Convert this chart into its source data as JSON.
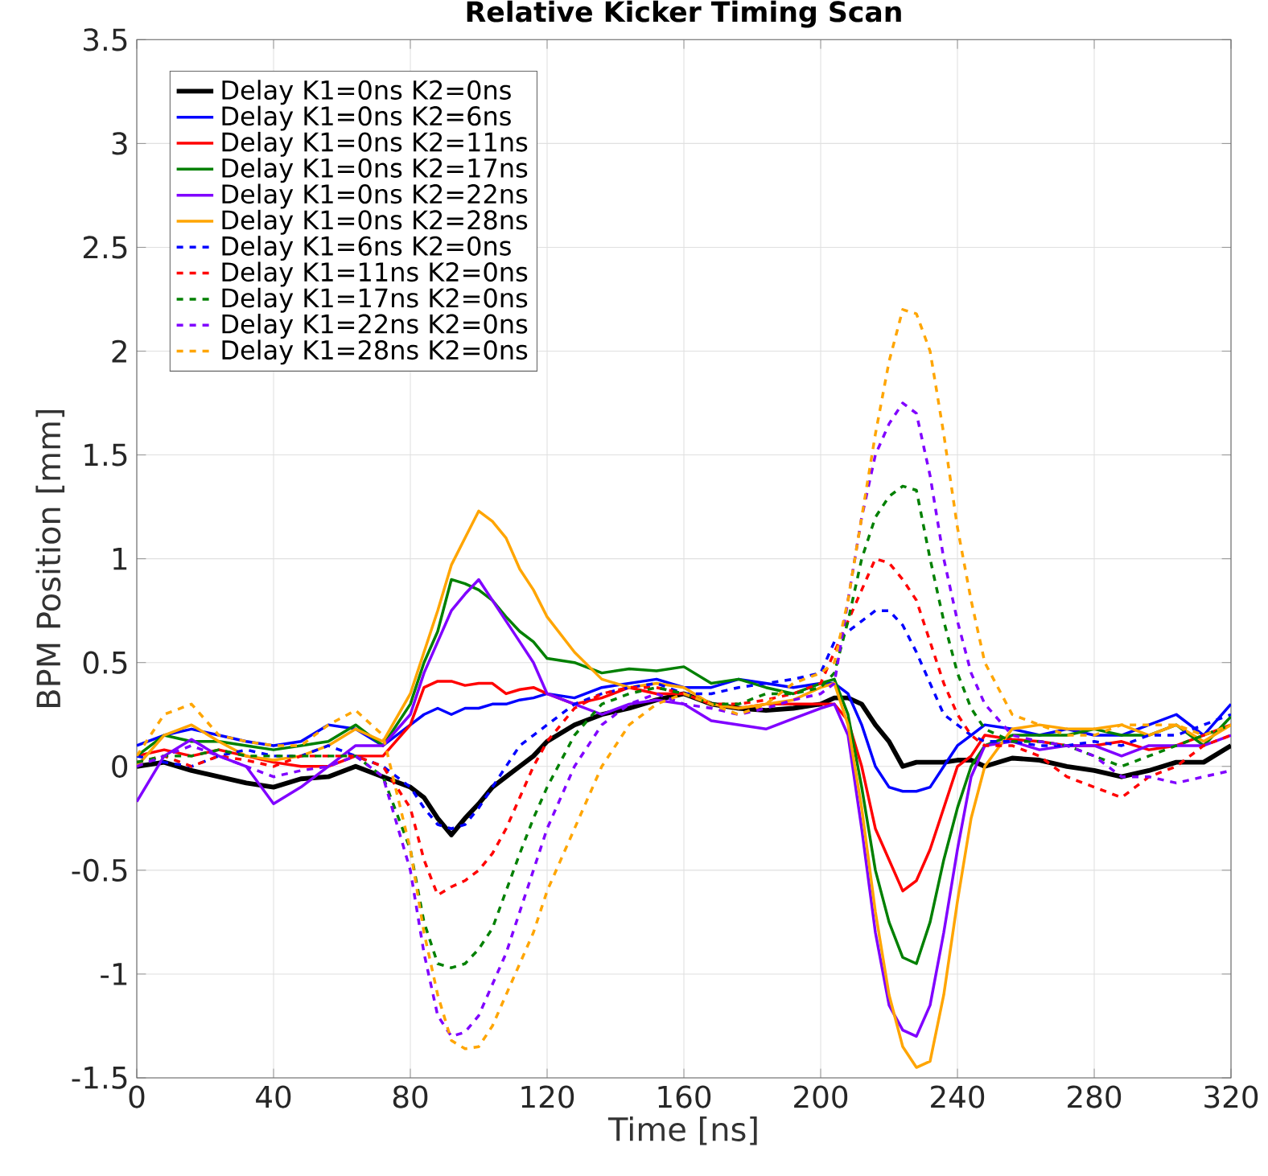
{
  "chart_data": {
    "type": "line",
    "title": "Relative Kicker Timing Scan",
    "xlabel": "Time [ns]",
    "ylabel": "BPM Position [mm]",
    "x": [
      0,
      8,
      16,
      24,
      32,
      40,
      48,
      56,
      64,
      72,
      80,
      84,
      88,
      92,
      96,
      100,
      104,
      108,
      112,
      116,
      120,
      128,
      136,
      144,
      152,
      160,
      168,
      176,
      184,
      192,
      200,
      204,
      208,
      212,
      216,
      220,
      224,
      228,
      232,
      236,
      240,
      244,
      248,
      256,
      264,
      272,
      280,
      288,
      296,
      304,
      312,
      320
    ],
    "xlim": [
      0,
      320
    ],
    "ylim": [
      -1.5,
      3.5
    ],
    "xticks": [
      0,
      40,
      80,
      120,
      160,
      200,
      240,
      280,
      320
    ],
    "yticks": [
      -1.5,
      -1,
      -0.5,
      0,
      0.5,
      1,
      1.5,
      2,
      2.5,
      3,
      3.5
    ],
    "grid": true,
    "legend": "top left",
    "series": [
      {
        "name": "Delay K1=0ns K2=0ns",
        "color": "#000000",
        "line_style": "solid",
        "values": [
          0,
          0.02,
          -0.02,
          -0.05,
          -0.08,
          -0.1,
          -0.06,
          -0.05,
          0,
          -0.05,
          -0.1,
          -0.15,
          -0.25,
          -0.33,
          -0.25,
          -0.18,
          -0.1,
          -0.05,
          0,
          0.05,
          0.12,
          0.2,
          0.25,
          0.28,
          0.32,
          0.35,
          0.3,
          0.28,
          0.27,
          0.28,
          0.3,
          0.33,
          0.33,
          0.3,
          0.2,
          0.12,
          0,
          0.02,
          0.02,
          0.02,
          0.03,
          0.03,
          0,
          0.04,
          0.03,
          0,
          -0.02,
          -0.05,
          -0.02,
          0.02,
          0.02,
          0.1
        ]
      },
      {
        "name": "Delay K1=0ns K2=6ns",
        "color": "#0000ff",
        "line_style": "solid",
        "values": [
          0.1,
          0.15,
          0.18,
          0.15,
          0.12,
          0.1,
          0.12,
          0.2,
          0.18,
          0.1,
          0.2,
          0.25,
          0.28,
          0.25,
          0.28,
          0.28,
          0.3,
          0.3,
          0.32,
          0.33,
          0.35,
          0.33,
          0.38,
          0.4,
          0.42,
          0.38,
          0.38,
          0.42,
          0.4,
          0.38,
          0.4,
          0.4,
          0.35,
          0.2,
          0,
          -0.1,
          -0.12,
          -0.12,
          -0.1,
          0,
          0.1,
          0.15,
          0.2,
          0.18,
          0.15,
          0.18,
          0.15,
          0.15,
          0.2,
          0.25,
          0.15,
          0.3
        ]
      },
      {
        "name": "Delay K1=0ns K2=11ns",
        "color": "#ff0000",
        "line_style": "solid",
        "values": [
          0.05,
          0.08,
          0.05,
          0.08,
          0.05,
          0.02,
          0,
          0,
          0.05,
          0.05,
          0.2,
          0.38,
          0.41,
          0.41,
          0.39,
          0.4,
          0.4,
          0.35,
          0.37,
          0.38,
          0.35,
          0.3,
          0.33,
          0.38,
          0.35,
          0.35,
          0.3,
          0.28,
          0.3,
          0.3,
          0.3,
          0.3,
          0.22,
          0,
          -0.3,
          -0.45,
          -0.6,
          -0.55,
          -0.4,
          -0.2,
          0,
          0.05,
          0.15,
          0.13,
          0.12,
          0.1,
          0.1,
          0.12,
          0.08,
          0.1,
          0.15,
          0.2
        ]
      },
      {
        "name": "Delay K1=0ns K2=17ns",
        "color": "#008000",
        "line_style": "solid",
        "values": [
          0.05,
          0.15,
          0.12,
          0.12,
          0.1,
          0.08,
          0.1,
          0.12,
          0.2,
          0.1,
          0.3,
          0.5,
          0.65,
          0.9,
          0.88,
          0.85,
          0.8,
          0.72,
          0.65,
          0.6,
          0.52,
          0.5,
          0.45,
          0.47,
          0.46,
          0.48,
          0.4,
          0.42,
          0.38,
          0.35,
          0.4,
          0.42,
          0.25,
          -0.1,
          -0.5,
          -0.75,
          -0.92,
          -0.95,
          -0.75,
          -0.45,
          -0.2,
          0,
          0.1,
          0.15,
          0.15,
          0.15,
          0.18,
          0.15,
          0.15,
          0.2,
          0.1,
          0.24
        ]
      },
      {
        "name": "Delay K1=0ns K2=22ns",
        "color": "#8000ff",
        "line_style": "solid",
        "values": [
          -0.17,
          0.05,
          0.13,
          0.05,
          0,
          -0.18,
          -0.1,
          0,
          0.1,
          0.1,
          0.25,
          0.45,
          0.6,
          0.75,
          0.83,
          0.9,
          0.8,
          0.7,
          0.6,
          0.5,
          0.35,
          0.3,
          0.25,
          0.3,
          0.32,
          0.3,
          0.22,
          0.2,
          0.18,
          0.23,
          0.28,
          0.3,
          0.15,
          -0.3,
          -0.8,
          -1.15,
          -1.27,
          -1.3,
          -1.15,
          -0.8,
          -0.4,
          -0.05,
          0.1,
          0.12,
          0.08,
          0.1,
          0.1,
          0.05,
          0.1,
          0.1,
          0.1,
          0.15
        ]
      },
      {
        "name": "Delay K1=0ns K2=28ns",
        "color": "#ffa500",
        "line_style": "solid",
        "values": [
          0,
          0.15,
          0.2,
          0.12,
          0.05,
          0.03,
          0.05,
          0.1,
          0.18,
          0.12,
          0.35,
          0.55,
          0.75,
          0.97,
          1.1,
          1.23,
          1.18,
          1.1,
          0.95,
          0.85,
          0.72,
          0.55,
          0.42,
          0.38,
          0.4,
          0.38,
          0.3,
          0.28,
          0.3,
          0.32,
          0.38,
          0.4,
          0.2,
          -0.2,
          -0.7,
          -1.1,
          -1.35,
          -1.45,
          -1.42,
          -1.1,
          -0.65,
          -0.25,
          0,
          0.18,
          0.2,
          0.18,
          0.18,
          0.2,
          0.15,
          0.2,
          0.12,
          0.2
        ]
      },
      {
        "name": "Delay K1=6ns K2=0ns",
        "color": "#0000ff",
        "line_style": "dashed",
        "values": [
          0.05,
          0.02,
          0,
          0.05,
          0.08,
          0.05,
          0.05,
          0.1,
          0.05,
          0,
          -0.1,
          -0.2,
          -0.28,
          -0.3,
          -0.28,
          -0.2,
          -0.1,
          0,
          0.1,
          0.15,
          0.2,
          0.3,
          0.35,
          0.38,
          0.4,
          0.35,
          0.35,
          0.38,
          0.4,
          0.42,
          0.45,
          0.6,
          0.65,
          0.7,
          0.75,
          0.75,
          0.68,
          0.55,
          0.4,
          0.25,
          0.2,
          0.15,
          0.12,
          0.12,
          0.1,
          0.1,
          0.12,
          0.1,
          0.15,
          0.15,
          0.2,
          0.25
        ]
      },
      {
        "name": "Delay K1=11ns K2=0ns",
        "color": "#ff0000",
        "line_style": "dashed",
        "values": [
          0.02,
          0.05,
          0,
          0.05,
          0.03,
          0,
          0.05,
          0.05,
          0.05,
          0,
          -0.2,
          -0.45,
          -0.62,
          -0.58,
          -0.55,
          -0.5,
          -0.42,
          -0.3,
          -0.15,
          0,
          0.12,
          0.28,
          0.35,
          0.38,
          0.38,
          0.35,
          0.3,
          0.3,
          0.32,
          0.35,
          0.4,
          0.55,
          0.7,
          0.85,
          1,
          0.98,
          0.9,
          0.8,
          0.6,
          0.4,
          0.25,
          0.15,
          0.1,
          0.1,
          0.05,
          -0.05,
          -0.1,
          -0.15,
          -0.05,
          0,
          0.1,
          0.15
        ]
      },
      {
        "name": "Delay K1=17ns K2=0ns",
        "color": "#008000",
        "line_style": "dashed",
        "values": [
          0.02,
          0.05,
          0.05,
          0.08,
          0.05,
          0.05,
          0.05,
          0.05,
          0.05,
          -0.05,
          -0.4,
          -0.75,
          -0.95,
          -0.97,
          -0.95,
          -0.88,
          -0.78,
          -0.6,
          -0.42,
          -0.25,
          -0.1,
          0.15,
          0.3,
          0.35,
          0.38,
          0.35,
          0.3,
          0.3,
          0.35,
          0.35,
          0.38,
          0.45,
          0.7,
          1,
          1.2,
          1.3,
          1.35,
          1.33,
          1,
          0.7,
          0.45,
          0.28,
          0.18,
          0.12,
          0.12,
          0.1,
          0.05,
          0,
          0.05,
          0.1,
          0.15,
          0.2
        ]
      },
      {
        "name": "Delay K1=22ns K2=0ns",
        "color": "#8000ff",
        "line_style": "dashed",
        "values": [
          0,
          0.05,
          0.1,
          0.05,
          0,
          -0.05,
          -0.02,
          0,
          0.05,
          -0.05,
          -0.5,
          -0.9,
          -1.2,
          -1.3,
          -1.28,
          -1.2,
          -1.05,
          -0.9,
          -0.7,
          -0.5,
          -0.3,
          0,
          0.2,
          0.3,
          0.35,
          0.3,
          0.28,
          0.25,
          0.28,
          0.32,
          0.35,
          0.4,
          0.8,
          1.2,
          1.5,
          1.65,
          1.75,
          1.7,
          1.4,
          1,
          0.7,
          0.45,
          0.3,
          0.15,
          0.12,
          0.1,
          0.05,
          -0.05,
          -0.05,
          -0.08,
          -0.05,
          -0.02
        ]
      },
      {
        "name": "Delay K1=28ns K2=0ns",
        "color": "#ffa500",
        "line_style": "dashed",
        "values": [
          0.05,
          0.25,
          0.3,
          0.15,
          0.12,
          0.1,
          0.1,
          0.2,
          0.27,
          0.15,
          -0.4,
          -0.8,
          -1.1,
          -1.32,
          -1.36,
          -1.35,
          -1.25,
          -1.1,
          -0.95,
          -0.8,
          -0.6,
          -0.3,
          0,
          0.2,
          0.3,
          0.35,
          0.3,
          0.25,
          0.3,
          0.4,
          0.45,
          0.5,
          0.8,
          1.2,
          1.6,
          1.95,
          2.2,
          2.18,
          2,
          1.6,
          1.15,
          0.8,
          0.5,
          0.25,
          0.2,
          0.15,
          0.15,
          0.2,
          0.2,
          0.2,
          0.15,
          0.2
        ]
      }
    ]
  }
}
